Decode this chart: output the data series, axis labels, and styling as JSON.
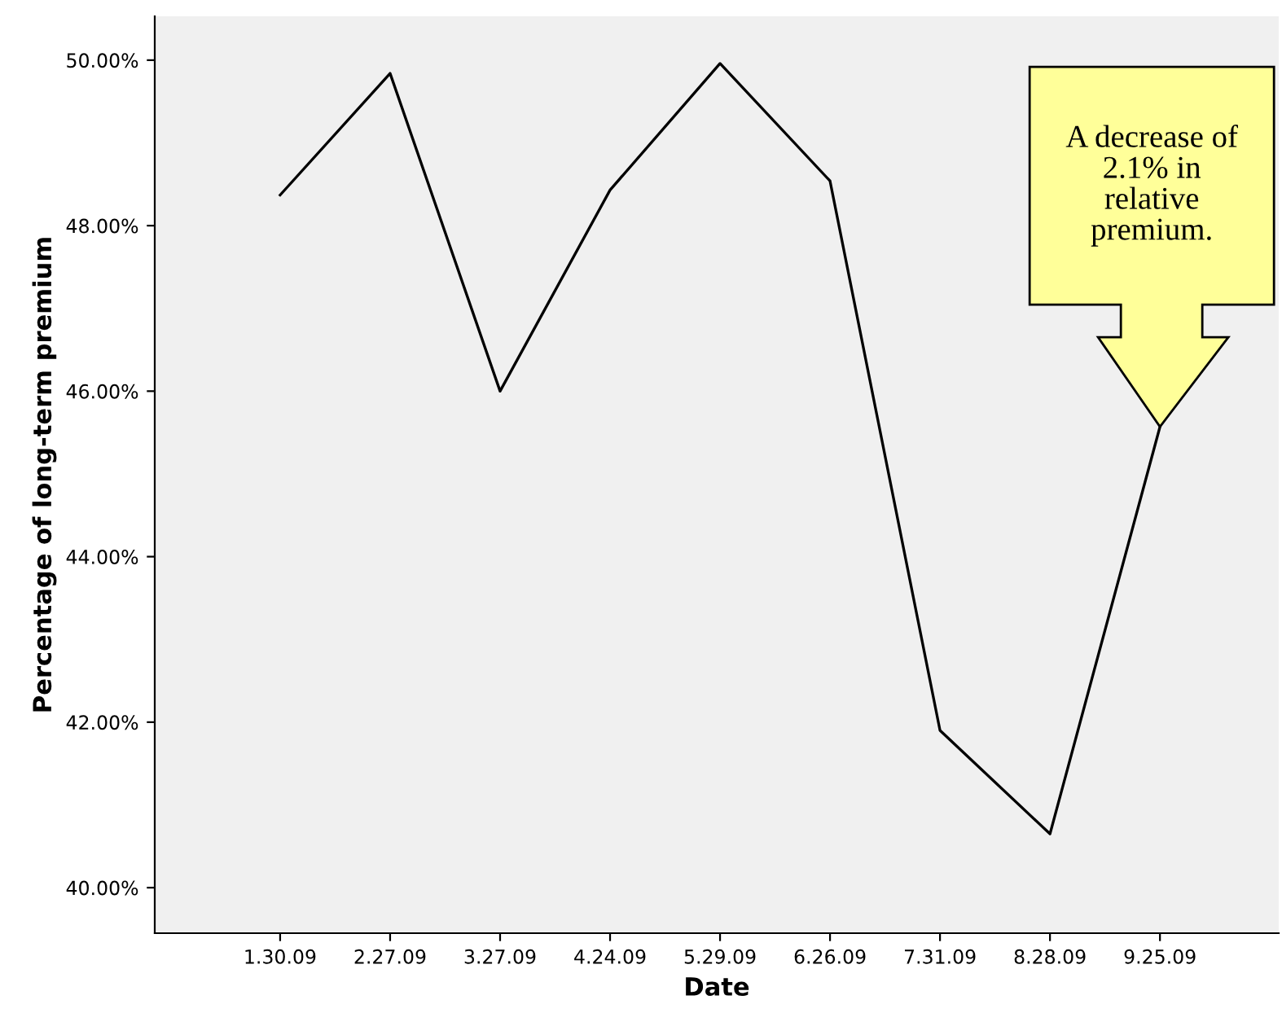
{
  "chart_data": {
    "type": "line",
    "xlabel": "Date",
    "ylabel": "Percentage of long-term premium",
    "categories": [
      "1.30.09",
      "2.27.09",
      "3.27.09",
      "4.24.09",
      "5.29.09",
      "6.26.09",
      "7.31.09",
      "8.28.09",
      "9.25.09"
    ],
    "series": [
      {
        "color": "#000000",
        "values": [
          48.37,
          49.84,
          46.0,
          48.43,
          49.96,
          48.54,
          41.9,
          40.65,
          45.57
        ]
      }
    ],
    "ylim": [
      39.45,
      50.53
    ],
    "yticks": [
      {
        "value": 40,
        "label": "40.00%"
      },
      {
        "value": 42,
        "label": "42.00%"
      },
      {
        "value": 44,
        "label": "44.00%"
      },
      {
        "value": 46,
        "label": "46.00%"
      },
      {
        "value": 48,
        "label": "48.00%"
      },
      {
        "value": 50,
        "label": "50.00%"
      }
    ],
    "grid": false,
    "legend": false,
    "marker": "none",
    "line_style": "solid",
    "annotations": [
      "A decrease of\n2.1% in\nrelative\npremium."
    ]
  }
}
